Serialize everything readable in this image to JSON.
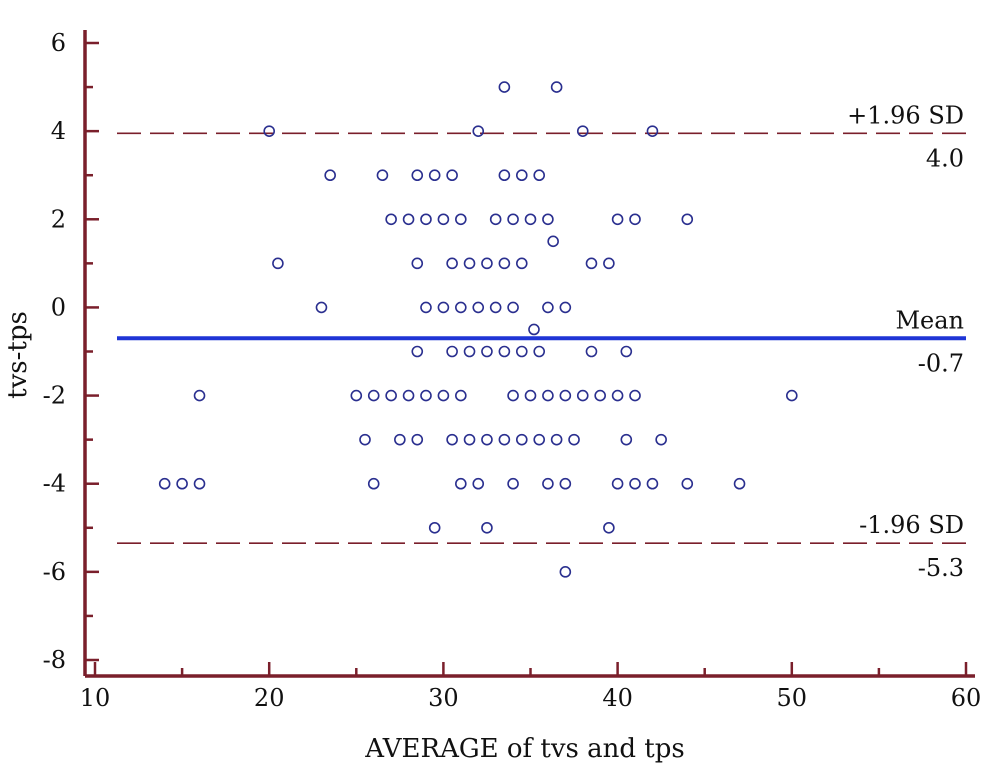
{
  "chart_data": {
    "type": "scatter",
    "xlabel": "AVERAGE of tvs and tps",
    "ylabel": "tvs-tps",
    "xlim": [
      10,
      60
    ],
    "ylim": [
      -8,
      6
    ],
    "x_ticks": [
      "10",
      "20",
      "30",
      "40",
      "50",
      "60"
    ],
    "y_ticks": [
      "6",
      "4",
      "2",
      "0",
      "-2",
      "-4",
      "-6",
      "-8"
    ],
    "x_tick_values": [
      10,
      20,
      30,
      40,
      50,
      60
    ],
    "y_tick_values": [
      6,
      4,
      2,
      0,
      -2,
      -4,
      -6,
      -8
    ],
    "grid": false,
    "reference_lines": [
      {
        "label": "+1.96 SD",
        "value_label": "4.0",
        "y": 3.95,
        "style": "dashed",
        "color": "#7a1f2b"
      },
      {
        "label": "Mean",
        "value_label": "-0.7",
        "y": -0.7,
        "style": "solid",
        "color": "#1f35d6"
      },
      {
        "label": "-1.96 SD",
        "value_label": "-5.3",
        "y": -5.35,
        "style": "dashed",
        "color": "#7a1f2b"
      }
    ],
    "colors": {
      "axis": "#7a1f2b",
      "points": "#2a2f8f",
      "mean": "#1f35d6",
      "sd": "#7a1f2b"
    },
    "points": [
      {
        "x": 33.5,
        "y": 5
      },
      {
        "x": 36.5,
        "y": 5
      },
      {
        "x": 20,
        "y": 4
      },
      {
        "x": 32,
        "y": 4
      },
      {
        "x": 38,
        "y": 4
      },
      {
        "x": 42,
        "y": 4
      },
      {
        "x": 23.5,
        "y": 3
      },
      {
        "x": 26.5,
        "y": 3
      },
      {
        "x": 28.5,
        "y": 3
      },
      {
        "x": 29.5,
        "y": 3
      },
      {
        "x": 30.5,
        "y": 3
      },
      {
        "x": 33.5,
        "y": 3
      },
      {
        "x": 34.5,
        "y": 3
      },
      {
        "x": 35.5,
        "y": 3
      },
      {
        "x": 27,
        "y": 2
      },
      {
        "x": 28,
        "y": 2
      },
      {
        "x": 29,
        "y": 2
      },
      {
        "x": 30,
        "y": 2
      },
      {
        "x": 31,
        "y": 2
      },
      {
        "x": 33,
        "y": 2
      },
      {
        "x": 34,
        "y": 2
      },
      {
        "x": 35,
        "y": 2
      },
      {
        "x": 36,
        "y": 2
      },
      {
        "x": 40,
        "y": 2
      },
      {
        "x": 41,
        "y": 2
      },
      {
        "x": 44,
        "y": 2
      },
      {
        "x": 36.3,
        "y": 1.5
      },
      {
        "x": 20.5,
        "y": 1
      },
      {
        "x": 28.5,
        "y": 1
      },
      {
        "x": 30.5,
        "y": 1
      },
      {
        "x": 31.5,
        "y": 1
      },
      {
        "x": 32.5,
        "y": 1
      },
      {
        "x": 33.5,
        "y": 1
      },
      {
        "x": 34.5,
        "y": 1
      },
      {
        "x": 38.5,
        "y": 1
      },
      {
        "x": 39.5,
        "y": 1
      },
      {
        "x": 23,
        "y": 0
      },
      {
        "x": 29,
        "y": 0
      },
      {
        "x": 30,
        "y": 0
      },
      {
        "x": 31,
        "y": 0
      },
      {
        "x": 32,
        "y": 0
      },
      {
        "x": 33,
        "y": 0
      },
      {
        "x": 34,
        "y": 0
      },
      {
        "x": 36,
        "y": 0
      },
      {
        "x": 37,
        "y": 0
      },
      {
        "x": 35.2,
        "y": -0.5
      },
      {
        "x": 28.5,
        "y": -1
      },
      {
        "x": 30.5,
        "y": -1
      },
      {
        "x": 31.5,
        "y": -1
      },
      {
        "x": 32.5,
        "y": -1
      },
      {
        "x": 33.5,
        "y": -1
      },
      {
        "x": 34.5,
        "y": -1
      },
      {
        "x": 35.5,
        "y": -1
      },
      {
        "x": 38.5,
        "y": -1
      },
      {
        "x": 40.5,
        "y": -1
      },
      {
        "x": 16,
        "y": -2
      },
      {
        "x": 25,
        "y": -2
      },
      {
        "x": 26,
        "y": -2
      },
      {
        "x": 27,
        "y": -2
      },
      {
        "x": 28,
        "y": -2
      },
      {
        "x": 29,
        "y": -2
      },
      {
        "x": 30,
        "y": -2
      },
      {
        "x": 31,
        "y": -2
      },
      {
        "x": 34,
        "y": -2
      },
      {
        "x": 35,
        "y": -2
      },
      {
        "x": 36,
        "y": -2
      },
      {
        "x": 37,
        "y": -2
      },
      {
        "x": 38,
        "y": -2
      },
      {
        "x": 39,
        "y": -2
      },
      {
        "x": 40,
        "y": -2
      },
      {
        "x": 41,
        "y": -2
      },
      {
        "x": 50,
        "y": -2
      },
      {
        "x": 25.5,
        "y": -3
      },
      {
        "x": 27.5,
        "y": -3
      },
      {
        "x": 28.5,
        "y": -3
      },
      {
        "x": 30.5,
        "y": -3
      },
      {
        "x": 31.5,
        "y": -3
      },
      {
        "x": 32.5,
        "y": -3
      },
      {
        "x": 33.5,
        "y": -3
      },
      {
        "x": 34.5,
        "y": -3
      },
      {
        "x": 35.5,
        "y": -3
      },
      {
        "x": 36.5,
        "y": -3
      },
      {
        "x": 37.5,
        "y": -3
      },
      {
        "x": 40.5,
        "y": -3
      },
      {
        "x": 42.5,
        "y": -3
      },
      {
        "x": 14,
        "y": -4
      },
      {
        "x": 15,
        "y": -4
      },
      {
        "x": 16,
        "y": -4
      },
      {
        "x": 26,
        "y": -4
      },
      {
        "x": 31,
        "y": -4
      },
      {
        "x": 32,
        "y": -4
      },
      {
        "x": 34,
        "y": -4
      },
      {
        "x": 36,
        "y": -4
      },
      {
        "x": 37,
        "y": -4
      },
      {
        "x": 40,
        "y": -4
      },
      {
        "x": 41,
        "y": -4
      },
      {
        "x": 42,
        "y": -4
      },
      {
        "x": 44,
        "y": -4
      },
      {
        "x": 47,
        "y": -4
      },
      {
        "x": 29.5,
        "y": -5
      },
      {
        "x": 32.5,
        "y": -5
      },
      {
        "x": 39.5,
        "y": -5
      },
      {
        "x": 37,
        "y": -6
      }
    ]
  }
}
